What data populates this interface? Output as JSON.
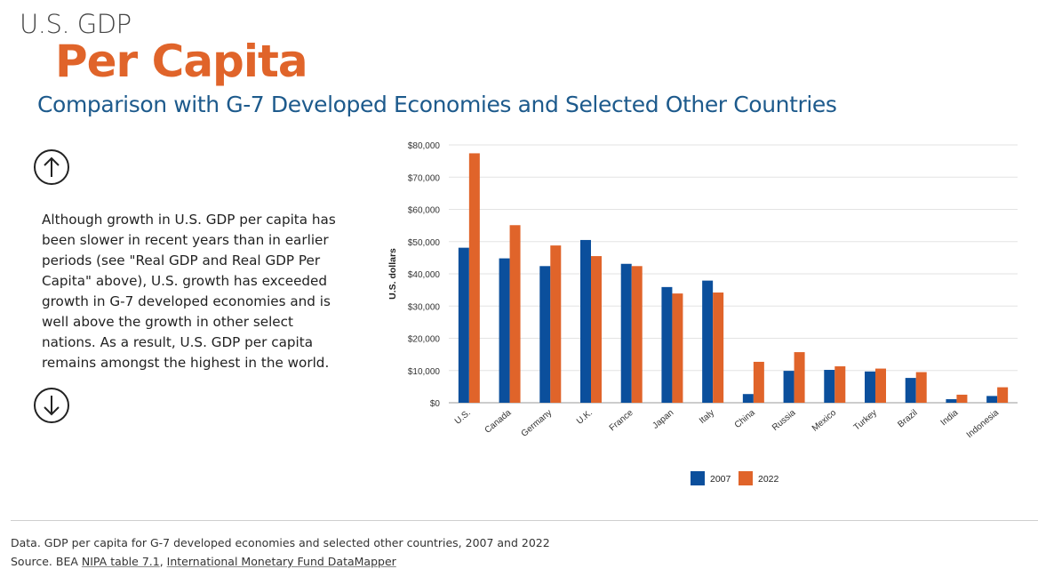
{
  "header": {
    "kicker": "U.S. GDP",
    "title": "Per Capita",
    "subtitle": "Comparison with G-7 Developed Economies and Selected Other Countries"
  },
  "body_text": "Although growth in U.S. GDP per capita has been slower in recent years than in earlier periods (see \"Real GDP and Real GDP Per Capita\" above), U.S. growth has exceeded growth in G-7 developed economies and is well above the growth in other select nations. As a result, U.S. GDP per capita remains amongst the highest in the world.",
  "nav": {
    "up_icon": "arrow-up-icon",
    "down_icon": "arrow-down-icon"
  },
  "footer": {
    "data_note": "Data. GDP per capita for G-7 developed economies and selected other countries, 2007 and 2022",
    "source_prefix": "Source. BEA ",
    "source_link1": "NIPA table 7.1",
    "source_sep": ", ",
    "source_link2": "International Monetary Fund DataMapper"
  },
  "chart_data": {
    "type": "bar",
    "categories": [
      "U.S.",
      "Canada",
      "Germany",
      "U.K.",
      "France",
      "Japan",
      "Italy",
      "China",
      "Russia",
      "Mexico",
      "Turkey",
      "Brazil",
      "India",
      "Indonesia"
    ],
    "series": [
      {
        "name": "2007",
        "color": "#0b4f9c",
        "values": [
          48100,
          44800,
          42400,
          50500,
          43100,
          35900,
          37900,
          2700,
          9900,
          10200,
          9700,
          7700,
          1100,
          2100
        ]
      },
      {
        "name": "2022",
        "color": "#e0642a",
        "values": [
          77400,
          55100,
          48800,
          45500,
          42400,
          33900,
          34200,
          12700,
          15700,
          11300,
          10600,
          9500,
          2500,
          4800
        ]
      }
    ],
    "ylabel": "U.S. dollars",
    "ylim": [
      0,
      80000
    ],
    "yticks": [
      "$0",
      "$10,000",
      "$20,000",
      "$30,000",
      "$40,000",
      "$50,000",
      "$60,000",
      "$70,000",
      "$80,000"
    ],
    "grid": true,
    "legend_position": "bottom"
  }
}
